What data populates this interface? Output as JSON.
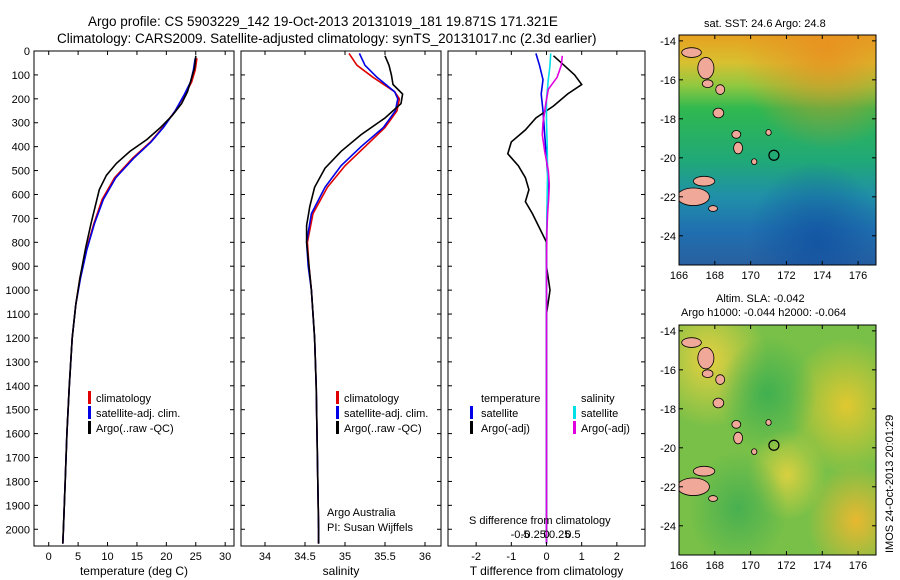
{
  "header": {
    "line1": "Argo profile: CS 5903229_142 19-Oct-2013 20131019_181 19.871S 171.321E",
    "line2": "Climatology: CARS2009. Satellite-adjusted climatology: synTS_20131017.nc (2.3d earlier)"
  },
  "side_stamp": "IMOS 24-Oct-2013 20:01:29",
  "colors": {
    "climatology": "#e00000",
    "satellite": "#0000e6",
    "argo": "#000000",
    "salinity_sat": "#00e0e8",
    "salinity_argo": "#e000e0",
    "coast": "#f0a898"
  },
  "depth_axis": {
    "ylim": [
      2070,
      0
    ],
    "ticks": [
      0,
      100,
      200,
      300,
      400,
      500,
      600,
      700,
      800,
      900,
      1000,
      1100,
      1200,
      1300,
      1400,
      1500,
      1600,
      1700,
      1800,
      1900,
      2000
    ]
  },
  "chart_data": [
    {
      "id": "temperature",
      "type": "line",
      "xlabel": "temperature (deg C)",
      "xlim": [
        -2.5,
        31.5
      ],
      "xticks": [
        0,
        5,
        10,
        15,
        20,
        25,
        30
      ],
      "xtick_labels": [
        "0",
        "5",
        "10",
        "15",
        "20",
        "25",
        "30"
      ],
      "legend": [
        "climatology",
        "satellite-adj. clim.",
        "Argo(..raw -QC)"
      ],
      "series": [
        {
          "name": "climatology",
          "color_key": "climatology",
          "points": [
            [
              25.2,
              30
            ],
            [
              24.9,
              80
            ],
            [
              24.3,
              130
            ],
            [
              23.2,
              180
            ],
            [
              21.5,
              250
            ],
            [
              19.4,
              320
            ],
            [
              17.3,
              380
            ],
            [
              14.2,
              450
            ],
            [
              11.2,
              530
            ],
            [
              9.1,
              620
            ],
            [
              7.7,
              720
            ],
            [
              6.4,
              830
            ],
            [
              5.3,
              950
            ],
            [
              4.6,
              1060
            ],
            [
              4.0,
              1200
            ],
            [
              3.5,
              1400
            ],
            [
              3.1,
              1600
            ],
            [
              2.8,
              1800
            ],
            [
              2.5,
              2000
            ],
            [
              2.4,
              2060
            ]
          ]
        },
        {
          "name": "satellite-adj. clim.",
          "color_key": "satellite",
          "points": [
            [
              24.9,
              30
            ],
            [
              24.6,
              80
            ],
            [
              24.1,
              130
            ],
            [
              23.1,
              180
            ],
            [
              21.5,
              250
            ],
            [
              19.5,
              320
            ],
            [
              17.4,
              380
            ],
            [
              14.4,
              450
            ],
            [
              11.4,
              530
            ],
            [
              9.3,
              620
            ],
            [
              7.8,
              720
            ],
            [
              6.5,
              830
            ],
            [
              5.4,
              950
            ],
            [
              4.6,
              1060
            ],
            [
              4.0,
              1200
            ],
            [
              3.5,
              1400
            ],
            [
              3.1,
              1600
            ],
            [
              2.8,
              1800
            ],
            [
              2.5,
              2000
            ],
            [
              2.4,
              2060
            ]
          ]
        },
        {
          "name": "Argo(..raw -QC)",
          "color_key": "argo",
          "points": [
            [
              25.0,
              20
            ],
            [
              24.8,
              70
            ],
            [
              24.2,
              120
            ],
            [
              23.6,
              170
            ],
            [
              22.6,
              220
            ],
            [
              21.0,
              270
            ],
            [
              19.0,
              320
            ],
            [
              16.7,
              370
            ],
            [
              13.8,
              420
            ],
            [
              11.5,
              470
            ],
            [
              9.8,
              520
            ],
            [
              8.6,
              580
            ],
            [
              7.9,
              650
            ],
            [
              7.2,
              720
            ],
            [
              6.3,
              820
            ],
            [
              5.3,
              950
            ],
            [
              4.6,
              1060
            ],
            [
              4.0,
              1200
            ],
            [
              3.5,
              1400
            ],
            [
              3.1,
              1600
            ],
            [
              2.8,
              1800
            ],
            [
              2.5,
              2000
            ],
            [
              2.4,
              2060
            ]
          ]
        }
      ]
    },
    {
      "id": "salinity",
      "type": "line",
      "xlabel": "salinity",
      "xlim": [
        33.7,
        36.2
      ],
      "xticks": [
        34,
        34.5,
        35,
        35.5,
        36
      ],
      "xtick_labels": [
        "34",
        "34.5",
        "35",
        "35.5",
        "36"
      ],
      "legend": [
        "climatology",
        "satellite-adj. clim.",
        "Argo(..raw -QC)"
      ],
      "credit": [
        "Argo Australia",
        "PI: Susan Wijffels"
      ],
      "series": [
        {
          "name": "climatology",
          "color_key": "climatology",
          "points": [
            [
              35.05,
              10
            ],
            [
              35.15,
              60
            ],
            [
              35.35,
              110
            ],
            [
              35.62,
              170
            ],
            [
              35.68,
              200
            ],
            [
              35.65,
              250
            ],
            [
              35.5,
              320
            ],
            [
              35.25,
              400
            ],
            [
              35.0,
              480
            ],
            [
              34.78,
              570
            ],
            [
              34.6,
              680
            ],
            [
              34.53,
              800
            ],
            [
              34.55,
              900
            ],
            [
              34.58,
              1000
            ],
            [
              34.62,
              1200
            ],
            [
              34.64,
              1400
            ],
            [
              34.65,
              1600
            ],
            [
              34.66,
              1800
            ],
            [
              34.67,
              2000
            ],
            [
              34.67,
              2060
            ]
          ]
        },
        {
          "name": "satellite-adj. clim.",
          "color_key": "satellite",
          "points": [
            [
              35.18,
              10
            ],
            [
              35.25,
              60
            ],
            [
              35.4,
              110
            ],
            [
              35.62,
              170
            ],
            [
              35.66,
              200
            ],
            [
              35.63,
              250
            ],
            [
              35.48,
              320
            ],
            [
              35.2,
              400
            ],
            [
              34.95,
              480
            ],
            [
              34.75,
              570
            ],
            [
              34.58,
              680
            ],
            [
              34.52,
              800
            ],
            [
              34.54,
              900
            ],
            [
              34.58,
              1000
            ],
            [
              34.62,
              1200
            ],
            [
              34.64,
              1400
            ],
            [
              34.65,
              1600
            ],
            [
              34.66,
              1800
            ],
            [
              34.67,
              2000
            ],
            [
              34.67,
              2060
            ]
          ]
        },
        {
          "name": "Argo(..raw -QC)",
          "color_key": "argo",
          "points": [
            [
              35.5,
              20
            ],
            [
              35.55,
              60
            ],
            [
              35.58,
              100
            ],
            [
              35.6,
              140
            ],
            [
              35.72,
              180
            ],
            [
              35.7,
              220
            ],
            [
              35.5,
              280
            ],
            [
              35.2,
              350
            ],
            [
              34.95,
              420
            ],
            [
              34.75,
              490
            ],
            [
              34.62,
              570
            ],
            [
              34.56,
              650
            ],
            [
              34.52,
              730
            ],
            [
              34.52,
              800
            ],
            [
              34.55,
              900
            ],
            [
              34.58,
              1000
            ],
            [
              34.62,
              1200
            ],
            [
              34.64,
              1400
            ],
            [
              34.65,
              1600
            ],
            [
              34.66,
              1800
            ],
            [
              34.67,
              2000
            ],
            [
              34.67,
              2060
            ]
          ]
        }
      ]
    },
    {
      "id": "difference",
      "type": "line",
      "xlabel": "T difference from climatology",
      "xlabel_top": "S difference from climatology",
      "xlim": [
        -2.8,
        2.8
      ],
      "xticks": [
        -2,
        -1,
        0,
        1,
        2
      ],
      "xtick_labels": [
        "-2",
        "-1",
        "0",
        "1",
        "2"
      ],
      "xticks_s": [
        -0.5,
        -0.25,
        0,
        0.25,
        0.5
      ],
      "xticks_s_labels": [
        "-0.5",
        "-0.25",
        "0",
        "0.25",
        "0.5"
      ],
      "legend_left_title": "temperature",
      "legend_right_title": "salinity",
      "legend_left": [
        "satellite",
        "Argo(-adj)"
      ],
      "legend_right": [
        "satellite",
        "Argo(-adj)"
      ],
      "series": [
        {
          "name": "T satellite",
          "color_key": "satellite",
          "points": [
            [
              -0.3,
              10
            ],
            [
              -0.2,
              60
            ],
            [
              -0.1,
              120
            ],
            [
              -0.15,
              180
            ],
            [
              -0.1,
              250
            ],
            [
              -0.05,
              350
            ],
            [
              0,
              450
            ],
            [
              0.05,
              550
            ],
            [
              0.02,
              650
            ],
            [
              0,
              800
            ],
            [
              0,
              1000
            ],
            [
              0,
              1500
            ],
            [
              0,
              2060
            ]
          ]
        },
        {
          "name": "T Argo(-adj)",
          "color_key": "argo",
          "points": [
            [
              0.2,
              20
            ],
            [
              0.5,
              60
            ],
            [
              0.8,
              100
            ],
            [
              1.0,
              140
            ],
            [
              0.6,
              180
            ],
            [
              0.2,
              230
            ],
            [
              -0.3,
              280
            ],
            [
              -0.6,
              330
            ],
            [
              -1.0,
              380
            ],
            [
              -1.1,
              430
            ],
            [
              -0.8,
              480
            ],
            [
              -0.6,
              530
            ],
            [
              -0.5,
              580
            ],
            [
              -0.6,
              630
            ],
            [
              -0.4,
              680
            ],
            [
              -0.2,
              740
            ],
            [
              0,
              800
            ],
            [
              0,
              900
            ],
            [
              0.1,
              1000
            ],
            [
              0,
              1100
            ],
            [
              0,
              1300
            ],
            [
              0,
              1500
            ],
            [
              0,
              1800
            ],
            [
              0,
              2060
            ]
          ]
        },
        {
          "name": "S satellite",
          "color_key": "salinity_sat",
          "points": [
            [
              0.12,
              10
            ],
            [
              0.1,
              60
            ],
            [
              0.05,
              120
            ],
            [
              0,
              200
            ],
            [
              0,
              300
            ],
            [
              0.02,
              400
            ],
            [
              0.03,
              500
            ],
            [
              0.02,
              600
            ],
            [
              0.01,
              700
            ],
            [
              0,
              900
            ],
            [
              0,
              1200
            ],
            [
              0,
              1600
            ],
            [
              0,
              2060
            ]
          ]
        },
        {
          "name": "S Argo(-adj)",
          "color_key": "salinity_argo",
          "points": [
            [
              0.45,
              20
            ],
            [
              0.42,
              60
            ],
            [
              0.3,
              110
            ],
            [
              0.05,
              160
            ],
            [
              -0.02,
              220
            ],
            [
              -0.1,
              300
            ],
            [
              -0.12,
              350
            ],
            [
              -0.05,
              420
            ],
            [
              0.05,
              500
            ],
            [
              0.08,
              560
            ],
            [
              0.06,
              620
            ],
            [
              0.03,
              680
            ],
            [
              0.01,
              750
            ],
            [
              0,
              900
            ],
            [
              0,
              1200
            ],
            [
              0,
              1600
            ],
            [
              0,
              2060
            ]
          ]
        }
      ]
    },
    {
      "id": "sst_map",
      "type": "heatmap",
      "title": "sat. SST: 24.6  Argo: 24.8",
      "xlim": [
        166,
        177
      ],
      "ylim": [
        -25.5,
        -13.7
      ],
      "xticks": [
        166,
        168,
        170,
        172,
        174,
        176
      ],
      "yticks": [
        -14,
        -16,
        -18,
        -20,
        -22,
        -24
      ],
      "marker": {
        "lon": 171.3,
        "lat": -19.87
      }
    },
    {
      "id": "sla_map",
      "type": "heatmap",
      "title_line1": "Altim. SLA: -0.042",
      "title_line2": "Argo h1000: -0.044  h2000: -0.064",
      "xlim": [
        166,
        177
      ],
      "ylim": [
        -25.5,
        -13.7
      ],
      "xticks": [
        166,
        168,
        170,
        172,
        174,
        176
      ],
      "yticks": [
        -14,
        -16,
        -18,
        -20,
        -22,
        -24
      ],
      "marker": {
        "lon": 171.3,
        "lat": -19.87
      }
    }
  ]
}
